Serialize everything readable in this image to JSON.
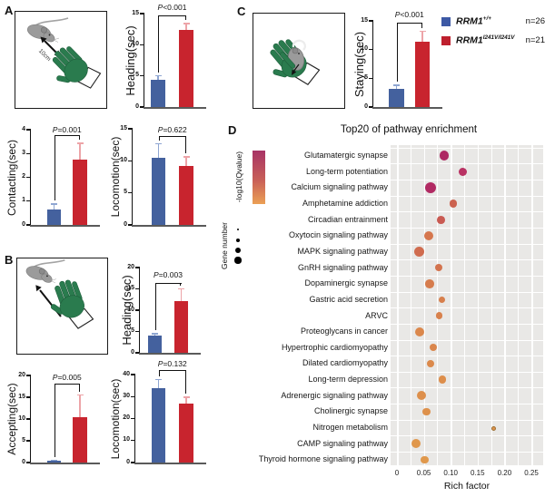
{
  "panels": {
    "A": {
      "label": "A",
      "illustration": {
        "distance_label": "10cm"
      }
    },
    "B": {
      "label": "B"
    },
    "C": {
      "label": "C",
      "legend": [
        {
          "gene": "RRM1",
          "sup": "+/+",
          "n": "n=26",
          "color": "#3d59a5"
        },
        {
          "gene": "RRM1",
          "sup": "I241V/I241V",
          "n": "n=21",
          "color": "#be202e"
        }
      ]
    },
    "D": {
      "label": "D",
      "title": "Top20 of pathway enrichment",
      "colorbar_label": "-log10(Qvalue)",
      "size_label": "Gene number",
      "xlabel": "Rich factor"
    }
  },
  "colors": {
    "wildtype_blue": "#44619e",
    "mutant_red": "#c8242e",
    "blue_error": "#8fa6d2",
    "red_error": "#eda4a8",
    "baseline_gray": "#5a5a5a",
    "glove_green": "#2a7b4e",
    "mouse_gray": "#9b9b9b",
    "dotplot_bg": "#e9e8e6"
  },
  "bar_groups": [
    "RRM1+/+",
    "RRM1I241V/I241V"
  ],
  "chart_data": [
    {
      "type": "bar",
      "id": "a-heading",
      "panel": "A",
      "ylabel": "Heading(sec)",
      "ylim": [
        0,
        15
      ],
      "ytick_step": 5,
      "p_value": "P<0.001",
      "values": [
        4.4,
        12.4
      ],
      "errors": [
        0.7,
        1.1
      ]
    },
    {
      "type": "bar",
      "id": "a-contacting",
      "panel": "A",
      "ylabel": "Contacting(sec)",
      "ylim": [
        0,
        4
      ],
      "ytick_step": 1,
      "p_value": "P=0.001",
      "values": [
        0.65,
        2.75
      ],
      "errors": [
        0.25,
        0.7
      ]
    },
    {
      "type": "bar",
      "id": "a-locomotion",
      "panel": "A",
      "ylabel": "Locomotion(sec)",
      "ylim": [
        0,
        15
      ],
      "ytick_step": 5,
      "p_value": "P=0.622",
      "values": [
        10.5,
        9.2
      ],
      "errors": [
        2.3,
        1.5
      ]
    },
    {
      "type": "bar",
      "id": "b-heading",
      "panel": "B",
      "ylabel": "Heading(sec)",
      "ylim": [
        0,
        20
      ],
      "ytick_step": 5,
      "p_value": "P=0.003",
      "values": [
        4.0,
        12.2
      ],
      "errors": [
        0.6,
        3.0
      ]
    },
    {
      "type": "bar",
      "id": "b-accepting",
      "panel": "B",
      "ylabel": "Accepting(sec)",
      "ylim": [
        0,
        20
      ],
      "ytick_step": 5,
      "p_value": "P=0.005",
      "values": [
        0.4,
        10.5
      ],
      "errors": [
        0.3,
        5.1
      ]
    },
    {
      "type": "bar",
      "id": "b-locomotion",
      "panel": "B",
      "ylabel": "Locomotion(sec)",
      "ylim": [
        0,
        40
      ],
      "ytick_step": 10,
      "p_value": "P=0.132",
      "values": [
        34,
        26.8
      ],
      "errors": [
        4.0,
        3.2
      ]
    },
    {
      "type": "bar",
      "id": "c-staying",
      "panel": "C",
      "ylabel": "Staying(sec)",
      "ylim": [
        0,
        15
      ],
      "ytick_step": 5,
      "p_value": "P<0.001",
      "values": [
        3.2,
        11.3
      ],
      "errors": [
        0.7,
        2.0
      ]
    },
    {
      "type": "scatter",
      "id": "pathway-enrichment",
      "panel": "D",
      "title": "Top20 of pathway enrichment",
      "xlabel": "Rich factor",
      "xlim": [
        0,
        0.25
      ],
      "xticks": [
        "0",
        "0.05",
        "0.10",
        "0.15",
        "0.20",
        "0.25"
      ],
      "color_legend": "-log10(Qvalue)",
      "size_legend": "Gene number",
      "points": [
        {
          "pathway": "Glutamatergic synapse",
          "rich_factor": 0.088,
          "dot_radius": 5.2,
          "color": "#ad2762"
        },
        {
          "pathway": "Long-term potentiation",
          "rich_factor": 0.122,
          "dot_radius": 4.6,
          "color": "#b93263"
        },
        {
          "pathway": "Calcium signaling pathway",
          "rich_factor": 0.062,
          "dot_radius": 6.0,
          "color": "#b12a63"
        },
        {
          "pathway": "Amphetamine addiction",
          "rich_factor": 0.105,
          "dot_radius": 4.3,
          "color": "#cc6350"
        },
        {
          "pathway": "Circadian entrainment",
          "rich_factor": 0.082,
          "dot_radius": 4.4,
          "color": "#c95a52"
        },
        {
          "pathway": "Oxytocin signaling pathway",
          "rich_factor": 0.059,
          "dot_radius": 5.0,
          "color": "#d5764d"
        },
        {
          "pathway": "MAPK signaling pathway",
          "rich_factor": 0.042,
          "dot_radius": 5.6,
          "color": "#d06c4f"
        },
        {
          "pathway": "GnRH signaling pathway",
          "rich_factor": 0.078,
          "dot_radius": 4.2,
          "color": "#d3734e"
        },
        {
          "pathway": "Dopaminergic synapse",
          "rich_factor": 0.061,
          "dot_radius": 4.8,
          "color": "#d67c4d"
        },
        {
          "pathway": "Gastric acid secretion",
          "rich_factor": 0.083,
          "dot_radius": 3.6,
          "color": "#d77f4c"
        },
        {
          "pathway": "ARVC",
          "rich_factor": 0.078,
          "dot_radius": 3.6,
          "color": "#d8814c"
        },
        {
          "pathway": "Proteoglycans in cancer",
          "rich_factor": 0.042,
          "dot_radius": 5.0,
          "color": "#db884c"
        },
        {
          "pathway": "Hypertrophic cardiomyopathy",
          "rich_factor": 0.067,
          "dot_radius": 4.0,
          "color": "#da864c"
        },
        {
          "pathway": "Dilated cardiomyopathy",
          "rich_factor": 0.063,
          "dot_radius": 4.0,
          "color": "#db894b"
        },
        {
          "pathway": "Long-term depression",
          "rich_factor": 0.084,
          "dot_radius": 4.2,
          "color": "#dd8e4b"
        },
        {
          "pathway": "Adrenergic signaling pathway",
          "rich_factor": 0.046,
          "dot_radius": 5.0,
          "color": "#dd8f4b"
        },
        {
          "pathway": "Cholinergic synapse",
          "rich_factor": 0.055,
          "dot_radius": 4.4,
          "color": "#de914b"
        },
        {
          "pathway": "Nitrogen metabolism",
          "rich_factor": 0.178,
          "dot_radius": 1.6,
          "color": "#de924b"
        },
        {
          "pathway": "CAMP signaling pathway",
          "rich_factor": 0.036,
          "dot_radius": 5.0,
          "color": "#e0974c"
        },
        {
          "pathway": "Thyroid hormone signaling pathway",
          "rich_factor": 0.051,
          "dot_radius": 4.4,
          "color": "#e0984c"
        }
      ]
    }
  ]
}
